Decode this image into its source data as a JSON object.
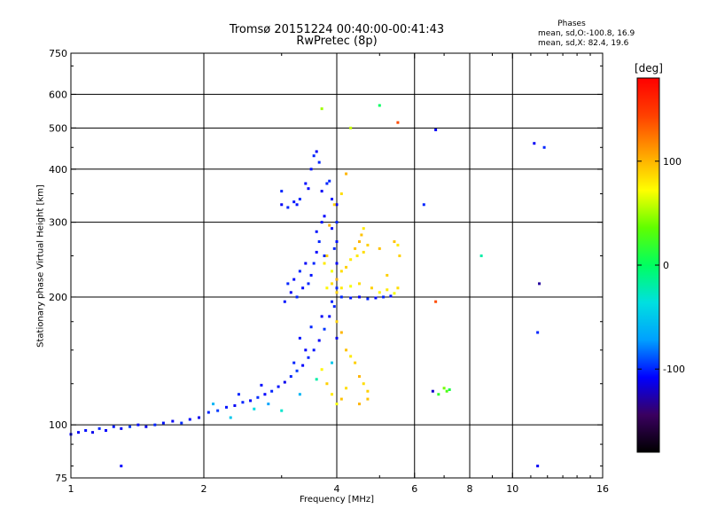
{
  "chart_data": {
    "type": "scatter",
    "title": "Tromsø 20151224 00:40:00-00:41:43",
    "subtitle": "RwPretec (8p)",
    "phase_header": "Phases",
    "stats": {
      "o_mode": "mean, sd,O:-100.8, 16.9",
      "x_mode": "mean, sd,X:  82.4, 19.6"
    },
    "xlabel": "Frequency [MHz]",
    "ylabel": "Stationary phase Virtual Height [km]",
    "x_scale": "log",
    "y_scale": "log",
    "xlim": [
      1,
      16
    ],
    "ylim": [
      75,
      750
    ],
    "x_ticks": [
      1,
      2,
      4,
      6,
      8,
      10,
      16
    ],
    "y_ticks": [
      75,
      100,
      200,
      300,
      400,
      500,
      600,
      750
    ],
    "x_grid": [
      2,
      4,
      6,
      8,
      10
    ],
    "y_grid": [
      100,
      200,
      300,
      400,
      500,
      600
    ],
    "grid": true,
    "colorbar": {
      "label": "[deg]",
      "range": [
        -180,
        180
      ],
      "ticks": [
        100,
        0,
        -100
      ],
      "colors": [
        "#000000",
        "#3a0060",
        "#0000ff",
        "#00a0ff",
        "#00e0e0",
        "#00ff60",
        "#60ff00",
        "#ffff00",
        "#ffa000",
        "#ff4000",
        "#ff0000"
      ]
    },
    "series": [
      {
        "mode": "O",
        "points": [
          [
            1.0,
            95,
            -108
          ],
          [
            1.04,
            96,
            -110
          ],
          [
            1.08,
            97,
            -105
          ],
          [
            1.12,
            96,
            -112
          ],
          [
            1.16,
            98,
            -100
          ],
          [
            1.2,
            97,
            -108
          ],
          [
            1.25,
            99,
            -103
          ],
          [
            1.3,
            98,
            -110
          ],
          [
            1.36,
            99,
            -96
          ],
          [
            1.42,
            100,
            -106
          ],
          [
            1.48,
            99,
            -112
          ],
          [
            1.55,
            100,
            -100
          ],
          [
            1.62,
            101,
            -104
          ],
          [
            1.7,
            102,
            -110
          ],
          [
            1.78,
            101,
            -98
          ],
          [
            1.86,
            103,
            -106
          ],
          [
            1.95,
            104,
            -112
          ],
          [
            2.05,
            107,
            -100
          ],
          [
            2.15,
            108,
            -95
          ],
          [
            2.25,
            110,
            -104
          ],
          [
            2.35,
            111,
            -110
          ],
          [
            2.45,
            113,
            -100
          ],
          [
            2.55,
            114,
            -106
          ],
          [
            2.65,
            116,
            -98
          ],
          [
            2.75,
            118,
            -108
          ],
          [
            2.85,
            120,
            -100
          ],
          [
            2.95,
            123,
            -104
          ],
          [
            3.05,
            126,
            -112
          ],
          [
            3.15,
            130,
            -100
          ],
          [
            3.25,
            134,
            -95
          ],
          [
            3.35,
            138,
            -108
          ],
          [
            3.45,
            144,
            -100
          ],
          [
            3.55,
            150,
            -104
          ],
          [
            3.65,
            158,
            -110
          ],
          [
            3.75,
            168,
            -96
          ],
          [
            3.85,
            180,
            -106
          ],
          [
            3.95,
            190,
            -100
          ],
          [
            1.3,
            80,
            -108
          ],
          [
            2.1,
            112,
            -60
          ],
          [
            2.3,
            104,
            -50
          ],
          [
            2.6,
            109,
            -40
          ],
          [
            2.8,
            112,
            -70
          ],
          [
            3.0,
            108,
            -30
          ],
          [
            3.3,
            118,
            -60
          ],
          [
            3.6,
            128,
            -20
          ],
          [
            3.9,
            140,
            -50
          ],
          [
            2.4,
            118,
            -100
          ],
          [
            2.7,
            124,
            -106
          ],
          [
            3.2,
            140,
            -100
          ],
          [
            3.4,
            150,
            -108
          ],
          [
            3.3,
            160,
            -104
          ],
          [
            3.5,
            170,
            -100
          ],
          [
            3.7,
            180,
            -110
          ],
          [
            3.9,
            195,
            -100
          ],
          [
            4.0,
            160,
            -112
          ],
          [
            4.0,
            210,
            -100
          ],
          [
            4.0,
            240,
            -108
          ],
          [
            4.0,
            270,
            -104
          ],
          [
            4.0,
            300,
            -100
          ],
          [
            4.0,
            330,
            -110
          ],
          [
            3.9,
            290,
            -106
          ],
          [
            3.95,
            260,
            -100
          ],
          [
            3.05,
            195,
            -104
          ],
          [
            3.15,
            205,
            -110
          ],
          [
            3.25,
            200,
            -100
          ],
          [
            3.35,
            210,
            -106
          ],
          [
            3.45,
            215,
            -100
          ],
          [
            3.5,
            225,
            -104
          ],
          [
            3.55,
            240,
            -100
          ],
          [
            3.6,
            255,
            -108
          ],
          [
            3.65,
            270,
            -100
          ],
          [
            3.6,
            285,
            -104
          ],
          [
            3.4,
            240,
            -110
          ],
          [
            3.3,
            230,
            -100
          ],
          [
            3.2,
            220,
            -106
          ],
          [
            3.1,
            215,
            -100
          ],
          [
            3.7,
            300,
            -104
          ],
          [
            3.75,
            250,
            -100
          ],
          [
            3.0,
            330,
            -110
          ],
          [
            3.1,
            325,
            -100
          ],
          [
            3.2,
            335,
            -104
          ],
          [
            3.3,
            340,
            -100
          ],
          [
            3.4,
            370,
            -106
          ],
          [
            3.5,
            400,
            -104
          ],
          [
            3.55,
            430,
            -100
          ],
          [
            3.6,
            440,
            -110
          ],
          [
            3.65,
            415,
            -100
          ],
          [
            3.45,
            360,
            -108
          ],
          [
            3.0,
            355,
            -100
          ],
          [
            3.25,
            330,
            -104
          ],
          [
            4.1,
            200,
            -100
          ],
          [
            4.3,
            199,
            -104
          ],
          [
            4.5,
            200,
            -110
          ],
          [
            4.7,
            198,
            -100
          ],
          [
            4.9,
            199,
            -106
          ],
          [
            5.1,
            200,
            -100
          ],
          [
            5.3,
            201,
            -104
          ],
          [
            6.3,
            330,
            -100
          ],
          [
            6.7,
            495,
            -110
          ],
          [
            6.6,
            120,
            -120
          ],
          [
            11.5,
            215,
            -130
          ],
          [
            11.4,
            165,
            -100
          ],
          [
            11.2,
            460,
            -110
          ],
          [
            11.8,
            450,
            -100
          ],
          [
            11.4,
            80,
            -110
          ],
          [
            3.8,
            370,
            -100
          ],
          [
            3.7,
            355,
            -110
          ],
          [
            3.9,
            340,
            -104
          ],
          [
            3.85,
            375,
            -100
          ],
          [
            3.75,
            310,
            -108
          ]
        ]
      },
      {
        "mode": "X",
        "points": [
          [
            3.75,
            240,
            80
          ],
          [
            3.8,
            250,
            90
          ],
          [
            3.9,
            230,
            70
          ],
          [
            4.0,
            220,
            100
          ],
          [
            4.1,
            230,
            85
          ],
          [
            4.2,
            235,
            90
          ],
          [
            4.3,
            245,
            80
          ],
          [
            4.4,
            260,
            95
          ],
          [
            4.5,
            270,
            100
          ],
          [
            4.6,
            255,
            85
          ],
          [
            4.7,
            265,
            90
          ],
          [
            4.55,
            280,
            95
          ],
          [
            4.45,
            250,
            80
          ],
          [
            3.8,
            210,
            75
          ],
          [
            3.9,
            215,
            85
          ],
          [
            4.0,
            205,
            90
          ],
          [
            4.1,
            210,
            80
          ],
          [
            4.3,
            212,
            70
          ],
          [
            4.5,
            215,
            85
          ],
          [
            4.8,
            210,
            90
          ],
          [
            5.0,
            205,
            75
          ],
          [
            5.2,
            208,
            80
          ],
          [
            5.4,
            204,
            70
          ],
          [
            5.5,
            210,
            85
          ],
          [
            5.55,
            250,
            90
          ],
          [
            5.4,
            270,
            95
          ],
          [
            5.5,
            265,
            80
          ],
          [
            4.0,
            175,
            90
          ],
          [
            4.1,
            165,
            100
          ],
          [
            4.2,
            150,
            95
          ],
          [
            4.3,
            145,
            80
          ],
          [
            4.4,
            140,
            90
          ],
          [
            4.5,
            130,
            100
          ],
          [
            4.6,
            125,
            85
          ],
          [
            4.7,
            120,
            90
          ],
          [
            4.1,
            115,
            95
          ],
          [
            4.0,
            112,
            70
          ],
          [
            3.9,
            118,
            80
          ],
          [
            3.8,
            125,
            90
          ],
          [
            3.7,
            135,
            75
          ],
          [
            4.2,
            122,
            85
          ],
          [
            4.5,
            112,
            100
          ],
          [
            4.7,
            115,
            95
          ],
          [
            3.95,
            330,
            90
          ],
          [
            4.1,
            350,
            85
          ],
          [
            3.85,
            295,
            100
          ],
          [
            4.6,
            290,
            80
          ],
          [
            5.0,
            260,
            95
          ],
          [
            5.2,
            225,
            90
          ],
          [
            6.7,
            195,
            140
          ],
          [
            7.1,
            120,
            30
          ],
          [
            7.0,
            122,
            40
          ],
          [
            6.8,
            118,
            20
          ],
          [
            7.2,
            121,
            10
          ],
          [
            4.3,
            500,
            60
          ],
          [
            5.0,
            565,
            0
          ],
          [
            5.5,
            515,
            140
          ],
          [
            3.7,
            555,
            50
          ],
          [
            8.5,
            250,
            -20
          ],
          [
            4.2,
            390,
            100
          ]
        ]
      }
    ]
  }
}
